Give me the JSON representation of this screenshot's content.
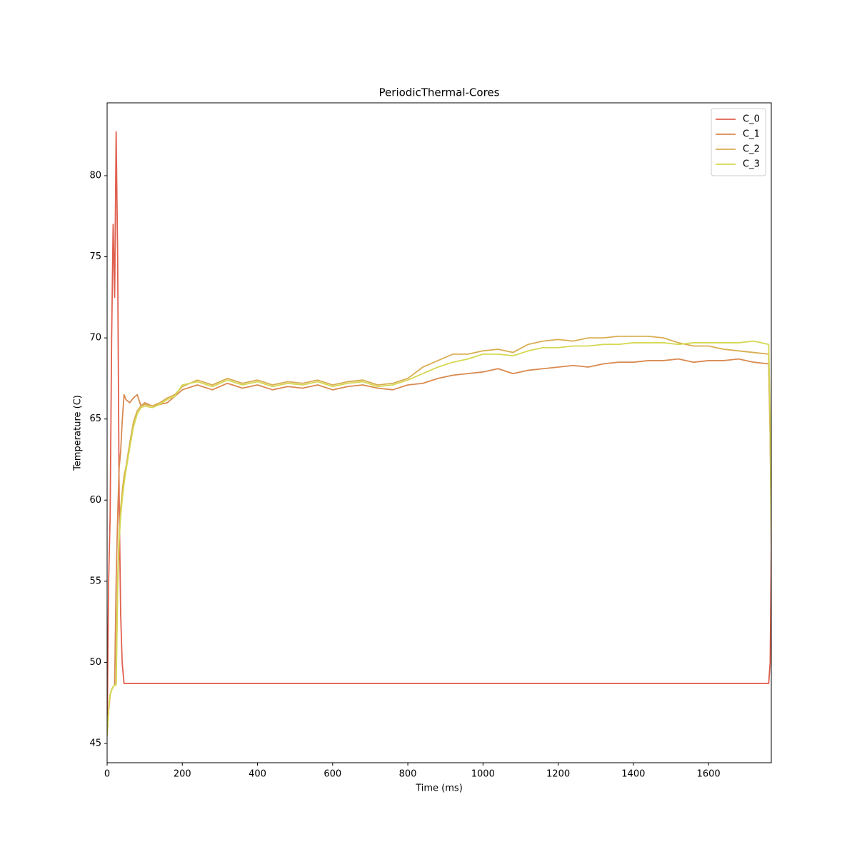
{
  "chart_data": {
    "type": "line",
    "title": "PeriodicThermal-Cores",
    "x_label": "Time (ms)",
    "y_label": "Temperature (C)",
    "xlim": [
      0,
      1767
    ],
    "ylim": [
      43.81,
      84.49
    ],
    "xticks": [
      0,
      200,
      400,
      600,
      800,
      1000,
      1200,
      1400,
      1600
    ],
    "yticks": [
      45,
      50,
      55,
      60,
      65,
      70,
      75,
      80
    ],
    "grid": false,
    "legend": "upper right",
    "x": [
      0,
      4,
      8,
      12,
      16,
      20,
      24,
      28,
      32,
      36,
      40,
      45,
      50,
      60,
      70,
      80,
      90,
      100,
      120,
      140,
      160,
      180,
      200,
      240,
      280,
      320,
      360,
      400,
      440,
      480,
      520,
      560,
      600,
      640,
      680,
      720,
      760,
      800,
      840,
      880,
      920,
      960,
      1000,
      1040,
      1080,
      1120,
      1160,
      1200,
      1240,
      1280,
      1320,
      1360,
      1400,
      1440,
      1480,
      1520,
      1560,
      1600,
      1640,
      1680,
      1720,
      1760,
      1764,
      1767
    ],
    "series": [
      {
        "name": "C_0",
        "color": "#e0604f",
        "values": [
          45.5,
          55,
          59,
          70,
          77,
          72.5,
          82.7,
          75,
          60,
          53,
          50,
          48.7,
          48.7,
          48.7,
          48.7,
          48.7,
          48.7,
          48.7,
          48.7,
          48.7,
          48.7,
          48.7,
          48.7,
          48.7,
          48.7,
          48.7,
          48.7,
          48.7,
          48.7,
          48.7,
          48.7,
          48.7,
          48.7,
          48.7,
          48.7,
          48.7,
          48.7,
          48.7,
          48.7,
          48.7,
          48.7,
          48.7,
          48.7,
          48.7,
          48.7,
          48.7,
          48.7,
          48.7,
          48.7,
          48.7,
          48.7,
          48.7,
          48.7,
          48.7,
          48.7,
          48.7,
          48.7,
          48.7,
          48.7,
          48.7,
          48.7,
          48.7,
          50,
          57
        ]
      },
      {
        "name": "C_1",
        "color": "#d98a50",
        "values": [
          45.5,
          47,
          48,
          48.3,
          48.5,
          48.6,
          55,
          59,
          62,
          63,
          64.8,
          66.5,
          66.2,
          66,
          66.3,
          66.5,
          65.8,
          66,
          65.8,
          65.9,
          66,
          66.4,
          66.8,
          67.1,
          66.8,
          67.2,
          66.9,
          67.1,
          66.8,
          67,
          66.9,
          67.1,
          66.8,
          67,
          67.1,
          66.9,
          66.8,
          67.1,
          67.2,
          67.5,
          67.7,
          67.8,
          67.9,
          68.1,
          67.8,
          68,
          68.1,
          68.2,
          68.3,
          68.2,
          68.4,
          68.5,
          68.5,
          68.6,
          68.6,
          68.7,
          68.5,
          68.6,
          68.6,
          68.7,
          68.5,
          68.4,
          64,
          57
        ]
      },
      {
        "name": "C_2",
        "color": "#d9ad52",
        "values": [
          45.5,
          47,
          48,
          48.3,
          48.5,
          48.6,
          48.6,
          55,
          58,
          59.5,
          60.5,
          61.5,
          62,
          63.5,
          64.8,
          65.5,
          65.8,
          65.9,
          65.8,
          66,
          66.3,
          66.5,
          67,
          67.4,
          67.1,
          67.5,
          67.2,
          67.4,
          67.1,
          67.3,
          67.2,
          67.4,
          67.1,
          67.3,
          67.4,
          67.1,
          67.2,
          67.5,
          68.2,
          68.6,
          69,
          69,
          69.2,
          69.3,
          69.1,
          69.6,
          69.8,
          69.9,
          69.8,
          70,
          70,
          70.1,
          70.1,
          70.1,
          70,
          69.7,
          69.5,
          69.5,
          69.3,
          69.2,
          69.1,
          69,
          64,
          58
        ]
      },
      {
        "name": "C_3",
        "color": "#d4d850",
        "values": [
          45.5,
          47,
          48,
          48.3,
          48.5,
          48.6,
          48.6,
          54.5,
          57.5,
          59,
          60,
          61,
          61.8,
          63.2,
          64.5,
          65.3,
          65.7,
          65.8,
          65.7,
          65.9,
          66.2,
          66.4,
          67.1,
          67.3,
          67,
          67.4,
          67.1,
          67.3,
          67,
          67.2,
          67.1,
          67.3,
          67,
          67.2,
          67.3,
          67,
          67.1,
          67.4,
          67.8,
          68.2,
          68.5,
          68.7,
          69,
          69,
          68.9,
          69.2,
          69.4,
          69.4,
          69.5,
          69.5,
          69.6,
          69.6,
          69.7,
          69.7,
          69.7,
          69.6,
          69.7,
          69.7,
          69.7,
          69.7,
          69.8,
          69.6,
          65,
          58
        ]
      }
    ]
  }
}
